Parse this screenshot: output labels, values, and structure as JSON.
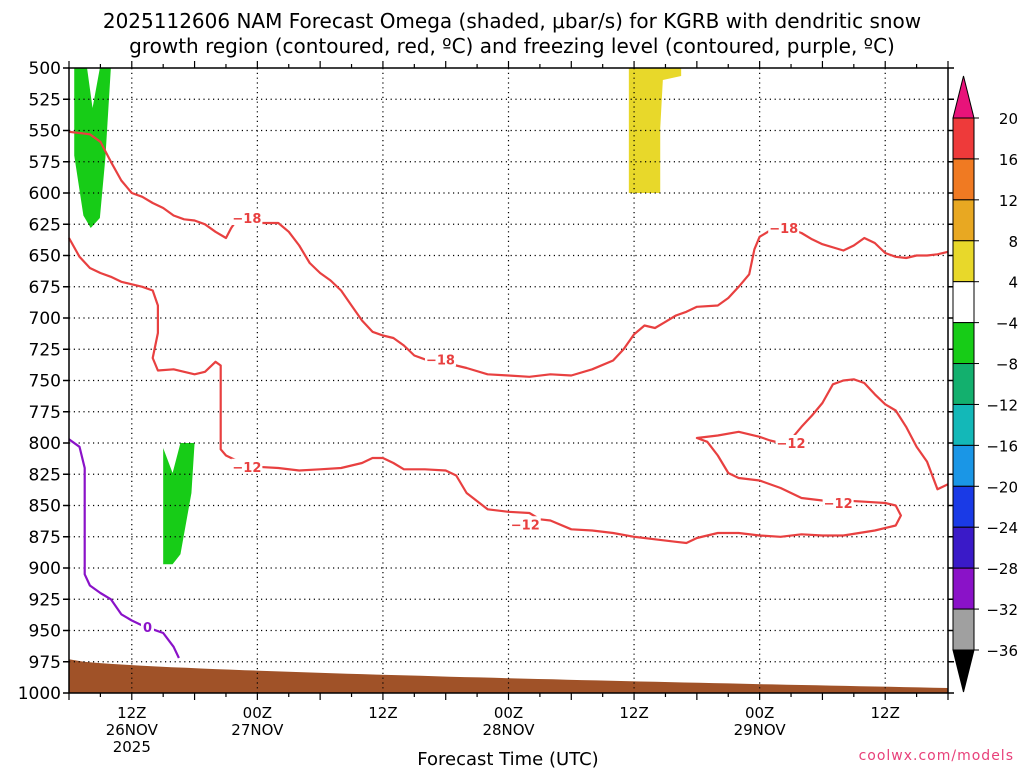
{
  "title_line1": "2025112606 NAM Forecast Omega (shaded, μbar/s) for KGRB with dendritic snow",
  "title_line2": "growth region (contoured, red, ºC) and freezing level (contoured, purple, ºC)",
  "credit": "coolwx.com/models",
  "chart_data": {
    "type": "time-height",
    "title": "2025112606 NAM Forecast Omega (shaded, μbar/s) for KGRB with dendritic snow growth region (contoured, red, ºC) and freezing level (contoured, purple, ºC)",
    "xlabel": "Forecast Time (UTC)",
    "ylabel": "",
    "x_range_hours": [
      0,
      84
    ],
    "y_range_hpa": [
      1000,
      500
    ],
    "y_reversed": true,
    "yticks": [
      500,
      525,
      550,
      575,
      600,
      625,
      650,
      675,
      700,
      725,
      750,
      775,
      800,
      825,
      850,
      875,
      900,
      925,
      950,
      975,
      1000
    ],
    "xticks": [
      {
        "hour": 6,
        "lines": [
          "12Z",
          "26NOV",
          "2025"
        ]
      },
      {
        "hour": 18,
        "lines": [
          "00Z",
          "27NOV"
        ]
      },
      {
        "hour": 30,
        "lines": [
          "12Z"
        ]
      },
      {
        "hour": 42,
        "lines": [
          "00Z",
          "28NOV"
        ]
      },
      {
        "hour": 54,
        "lines": [
          "12Z"
        ]
      },
      {
        "hour": 66,
        "lines": [
          "00Z",
          "29NOV"
        ]
      },
      {
        "hour": 78,
        "lines": [
          "12Z"
        ]
      }
    ],
    "grid": true,
    "colorbar": {
      "levels": [
        20,
        16,
        12,
        8,
        4,
        -4,
        -8,
        -12,
        -16,
        -20,
        -24,
        -28,
        -32,
        -36
      ],
      "colors": [
        "#e8135a",
        "#ee3a3a",
        "#f07a22",
        "#e8a822",
        "#e8d82a",
        "#ffffff",
        "#17cc17",
        "#13b06e",
        "#13b8b8",
        "#1a96e6",
        "#1a3ae6",
        "#3a1ac8",
        "#8a12c8",
        "#a0a0a0"
      ],
      "extend_top_color": "#e8137a",
      "extend_bottom_color": "#000000"
    },
    "omega_regions": [
      {
        "range": "-8 to -4",
        "color": "#17cc17",
        "hours": [
          0.5,
          4
        ],
        "hpa": [
          500,
          618
        ]
      },
      {
        "range": "-8 to -4",
        "color": "#17cc17",
        "hours": [
          9,
          12
        ],
        "hpa": [
          800,
          897
        ]
      },
      {
        "range": "4 to 8",
        "color": "#e8d82a",
        "hours": [
          53.5,
          58.5
        ],
        "hpa": [
          500,
          600
        ]
      }
    ],
    "terrain": {
      "color": "#a05228",
      "surface_hpa_start": 973,
      "surface_hpa_end": 996
    },
    "series": [
      {
        "contour": "-18",
        "color": "#e84040",
        "points": [
          [
            0,
            551
          ],
          [
            1,
            552
          ],
          [
            2,
            553
          ],
          [
            3,
            559
          ],
          [
            4,
            575
          ],
          [
            5,
            590
          ],
          [
            6,
            600
          ],
          [
            7,
            603
          ],
          [
            8,
            608
          ],
          [
            9,
            612
          ],
          [
            10,
            618
          ],
          [
            11,
            621
          ],
          [
            12,
            622
          ],
          [
            13,
            625
          ],
          [
            14,
            631
          ],
          [
            15,
            636
          ],
          [
            15.5,
            628
          ],
          [
            16,
            622
          ],
          [
            17,
            623
          ],
          [
            18,
            624
          ],
          [
            20,
            624
          ],
          [
            21,
            631
          ],
          [
            22,
            642
          ],
          [
            23,
            656
          ],
          [
            24,
            664
          ],
          [
            25,
            670
          ],
          [
            26,
            678
          ],
          [
            27,
            690
          ],
          [
            28,
            702
          ],
          [
            29,
            711
          ],
          [
            30,
            714
          ],
          [
            31,
            716
          ],
          [
            32,
            722
          ],
          [
            33,
            730
          ],
          [
            34,
            733
          ],
          [
            35,
            734
          ],
          [
            36,
            735
          ],
          [
            37,
            738
          ],
          [
            38,
            740
          ],
          [
            40,
            745
          ],
          [
            42,
            746
          ],
          [
            44,
            747
          ],
          [
            46,
            745
          ],
          [
            48,
            746
          ],
          [
            50,
            741
          ],
          [
            52,
            734
          ],
          [
            53,
            725
          ],
          [
            54,
            713
          ],
          [
            55,
            706
          ],
          [
            56,
            708
          ],
          [
            57,
            703
          ],
          [
            58,
            698
          ],
          [
            59,
            695
          ],
          [
            60,
            691
          ],
          [
            62,
            690
          ],
          [
            63,
            684
          ],
          [
            64,
            675
          ],
          [
            65,
            665
          ],
          [
            65.5,
            645
          ],
          [
            66,
            635
          ],
          [
            67,
            630
          ],
          [
            68,
            627
          ],
          [
            69,
            629
          ],
          [
            70,
            632
          ],
          [
            71,
            637
          ],
          [
            72,
            641
          ],
          [
            74,
            646
          ],
          [
            75,
            642
          ],
          [
            76,
            636
          ],
          [
            77,
            640
          ],
          [
            78,
            648
          ],
          [
            79,
            651
          ],
          [
            80,
            652
          ],
          [
            81,
            650
          ],
          [
            82,
            650
          ],
          [
            83,
            649
          ],
          [
            84,
            647
          ]
        ]
      },
      {
        "contour": "-12",
        "color": "#e84040",
        "points": [
          [
            0,
            636
          ],
          [
            1,
            651
          ],
          [
            2,
            660
          ],
          [
            3,
            664
          ],
          [
            4,
            667
          ],
          [
            5,
            671
          ],
          [
            6,
            673
          ],
          [
            7,
            675
          ],
          [
            8,
            678
          ],
          [
            8.5,
            690
          ],
          [
            8.5,
            712
          ],
          [
            8,
            732
          ],
          [
            8.5,
            742
          ],
          [
            10,
            741
          ],
          [
            11,
            743
          ],
          [
            12,
            745
          ],
          [
            13,
            743
          ],
          [
            14,
            735
          ],
          [
            14.5,
            738
          ],
          [
            14.5,
            750
          ],
          [
            14.5,
            770
          ],
          [
            14.5,
            805
          ],
          [
            15,
            810
          ],
          [
            16,
            814
          ],
          [
            18,
            819
          ],
          [
            20,
            820
          ],
          [
            22,
            822
          ],
          [
            24,
            821
          ],
          [
            26,
            820
          ],
          [
            28,
            816
          ],
          [
            29,
            812
          ],
          [
            30,
            812
          ],
          [
            31,
            816
          ],
          [
            32,
            821
          ],
          [
            34,
            821
          ],
          [
            36,
            822
          ],
          [
            37,
            826
          ],
          [
            38,
            840
          ],
          [
            40,
            853
          ],
          [
            42,
            855
          ],
          [
            44,
            856
          ],
          [
            45,
            861
          ],
          [
            46,
            862
          ],
          [
            48,
            869
          ],
          [
            50,
            870
          ],
          [
            52,
            872
          ],
          [
            54,
            875
          ],
          [
            56,
            877
          ],
          [
            58,
            879
          ],
          [
            59,
            880
          ],
          [
            60,
            876
          ],
          [
            62,
            872
          ],
          [
            64,
            872
          ],
          [
            66,
            874
          ],
          [
            68,
            875
          ],
          [
            70,
            873
          ],
          [
            72,
            874
          ],
          [
            74,
            874
          ],
          [
            77,
            870
          ],
          [
            79,
            866
          ],
          [
            79.5,
            858
          ],
          [
            79,
            850
          ],
          [
            78,
            848
          ],
          [
            76,
            847
          ],
          [
            74,
            846
          ],
          [
            72,
            846
          ],
          [
            70,
            844
          ],
          [
            68,
            836
          ],
          [
            66,
            830
          ],
          [
            64,
            828
          ],
          [
            63,
            824
          ],
          [
            62,
            810
          ],
          [
            61,
            799
          ],
          [
            60,
            796
          ],
          [
            62,
            794
          ],
          [
            64,
            791
          ],
          [
            66,
            795
          ],
          [
            67,
            798
          ],
          [
            68,
            800
          ],
          [
            69,
            797
          ],
          [
            70,
            787
          ],
          [
            71,
            778
          ],
          [
            72,
            768
          ],
          [
            73,
            753
          ],
          [
            74,
            750
          ],
          [
            75,
            749
          ],
          [
            76,
            752
          ],
          [
            77,
            761
          ],
          [
            78,
            769
          ],
          [
            79,
            774
          ],
          [
            80,
            787
          ],
          [
            81,
            803
          ],
          [
            82,
            815
          ],
          [
            83,
            837
          ],
          [
            84,
            833
          ]
        ]
      },
      {
        "contour": "0",
        "color": "#8a12c8",
        "points": [
          [
            0,
            797
          ],
          [
            1,
            803
          ],
          [
            1.5,
            820
          ],
          [
            1.5,
            850
          ],
          [
            1.5,
            880
          ],
          [
            1.5,
            905
          ],
          [
            2,
            914
          ],
          [
            3,
            920
          ],
          [
            4,
            925
          ],
          [
            5,
            937
          ],
          [
            6,
            942
          ],
          [
            7,
            946
          ],
          [
            8,
            949
          ],
          [
            9,
            952
          ],
          [
            10,
            963
          ],
          [
            10.5,
            972
          ]
        ]
      }
    ],
    "contour_labels": [
      {
        "text": "-18",
        "hour": 17.0,
        "hpa": 620
      },
      {
        "text": "-18",
        "hour": 35.5,
        "hpa": 733
      },
      {
        "text": "-18",
        "hour": 68.3,
        "hpa": 628
      },
      {
        "text": "-12",
        "hour": 17.0,
        "hpa": 819
      },
      {
        "text": "-12",
        "hour": 43.6,
        "hpa": 865
      },
      {
        "text": "-12",
        "hour": 69.0,
        "hpa": 800
      },
      {
        "text": "-12",
        "hour": 73.5,
        "hpa": 848
      },
      {
        "text": "0",
        "hour": 7.5,
        "hpa": 947
      }
    ]
  }
}
